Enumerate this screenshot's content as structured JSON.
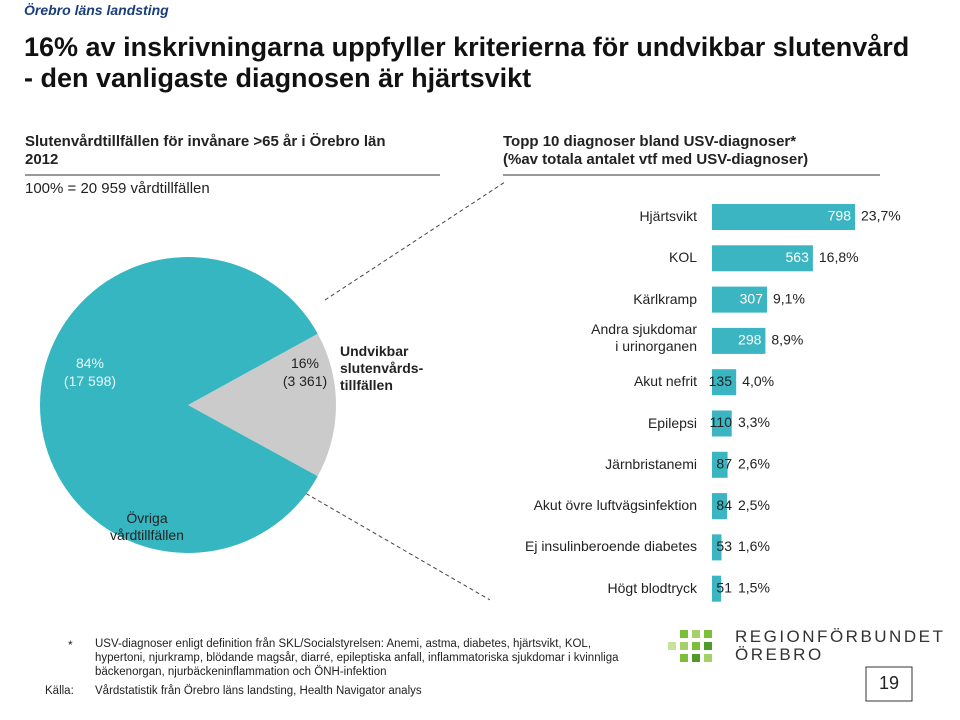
{
  "header": {
    "organization": "Örebro läns landsting",
    "title": "16% av inskrivningarna uppfyller kriterierna för undvikbar slutenvård - den vanligaste diagnosen är hjärtsvikt"
  },
  "chart_data": [
    {
      "type": "pie",
      "title": "Slutenvårdtillfällen för invånare >65 år i Örebro län\n2012",
      "subtitle": "100% = 20 959 vårdtillfällen",
      "categories": [
        "Övriga\nvårdtillfällen",
        "Undvikbar\nslutenvårds-\ntillfällen"
      ],
      "values": [
        84,
        16
      ],
      "value_labels": [
        "84%",
        "16%"
      ],
      "counts": [
        17598,
        3361
      ],
      "count_labels": [
        "(17 598)",
        "(3 361)"
      ],
      "colors": [
        "#35b6c1",
        "#cbcbcb"
      ]
    },
    {
      "type": "bar",
      "title": "Topp 10 diagnoser bland USV-diagnoser*\n(%av totala antalet vtf med USV-diagnoser)",
      "categories": [
        "Hjärtsvikt",
        "KOL",
        "Kärlkramp",
        "Andra sjukdomar\ni urinorganen",
        "Akut nefrit",
        "Epilepsi",
        "Järnbristanemi",
        "Akut övre luftvägsinfektion",
        "Ej insulinberoende diabetes",
        "Högt blodtryck"
      ],
      "values": [
        798,
        563,
        307,
        298,
        135,
        110,
        87,
        84,
        53,
        51
      ],
      "shares": [
        23.7,
        16.8,
        9.1,
        8.9,
        4.0,
        3.3,
        2.6,
        2.5,
        1.6,
        1.5
      ],
      "share_labels": [
        "23,7%",
        "16,8%",
        "9,1%",
        "8,9%",
        "4,0%",
        "3,3%",
        "2,6%",
        "2,5%",
        "1,6%",
        "1,5%"
      ],
      "color": "#3ab5c1"
    }
  ],
  "footnote": {
    "marker": "*",
    "text": "USV-diagnoser enligt definition från SKL/Socialstyrelsen: Anemi, astma, diabetes, hjärtsvikt, KOL,\nhypertoni, njurkramp, blödande magsår, diarré, epileptiska anfall, inflammatoriska sjukdomar i kvinnliga\nbäckenorgan, njurbäckeninflammation och ÖNH-infektion",
    "source_label": "Källa:",
    "source": "Vårdstatistik från Örebro läns landsting, Health Navigator analys"
  },
  "logo": "REGIONFÖRBUNDET\nÖREBRO",
  "page_number": "19"
}
